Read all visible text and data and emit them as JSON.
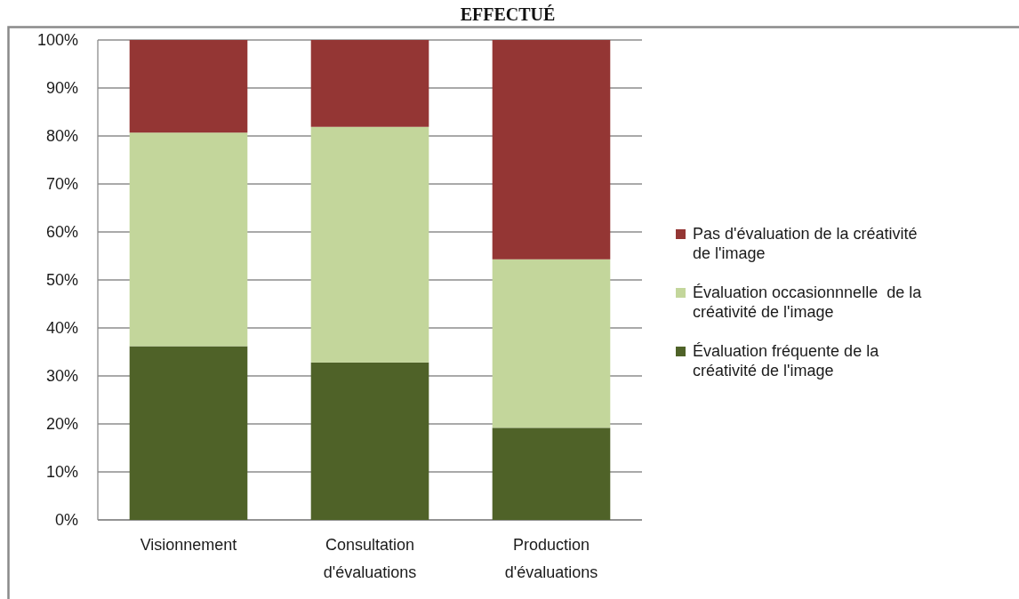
{
  "chart_data": {
    "type": "bar",
    "title": "EFFECTUÉ",
    "stacked": true,
    "categories": [
      "Visionnement",
      "Consultation d'évaluations",
      "Production d'évaluations"
    ],
    "series": [
      {
        "name": "Évaluation fréquente de la créativité de l'image",
        "color": "#4f6228",
        "values": [
          36.2,
          32.8,
          19.2
        ]
      },
      {
        "name": "Évaluation occasionnnelle  de la créativité de l'image",
        "color": "#c3d69b",
        "values": [
          44.5,
          49.1,
          35.1
        ]
      },
      {
        "name": "Pas d'évaluation de la créativité de l'image",
        "color": "#943634",
        "values": [
          19.3,
          18.1,
          45.7
        ]
      }
    ],
    "ylim": [
      0,
      100
    ],
    "yticks": [
      {
        "value": 0,
        "label": "0%"
      },
      {
        "value": 10,
        "label": "10%"
      },
      {
        "value": 20,
        "label": "20%"
      },
      {
        "value": 30,
        "label": "30%"
      },
      {
        "value": 40,
        "label": "40%"
      },
      {
        "value": 50,
        "label": "50%"
      },
      {
        "value": 60,
        "label": "60%"
      },
      {
        "value": 70,
        "label": "70%"
      },
      {
        "value": 80,
        "label": "80%"
      },
      {
        "value": 90,
        "label": "90%"
      },
      {
        "value": 100,
        "label": "100%"
      }
    ],
    "grid": "y",
    "legend": "right"
  }
}
